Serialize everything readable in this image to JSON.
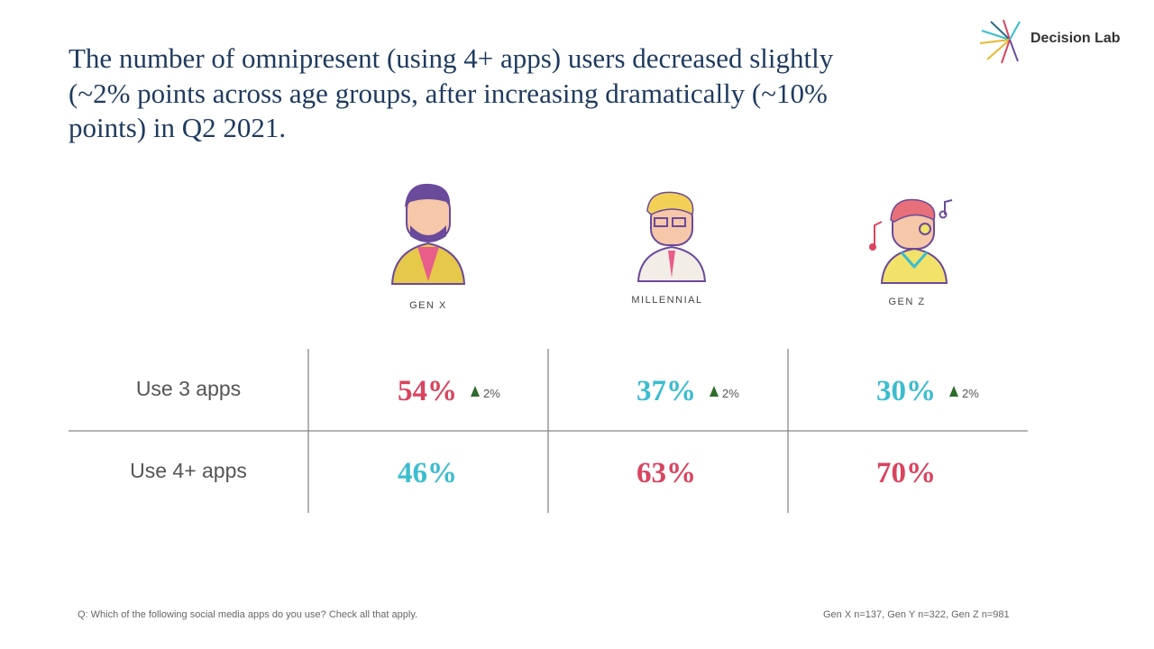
{
  "header": {
    "title_lines": [
      "The number of omnipresent (using 4+ apps) users decreased slightly",
      "(~2% points across age groups, after increasing dramatically (~10%",
      "points) in Q2 2021."
    ],
    "logo": "Decision Lab",
    "title_color": "#1f3a5f"
  },
  "table": {
    "columns": [
      "GEN X",
      "MILLENNIAL",
      "GEN Z"
    ],
    "rows": [
      {
        "label": "Use 3 apps",
        "cells": [
          {
            "value": "54%",
            "color": "#d9445f",
            "change": "2%"
          },
          {
            "value": "37%",
            "color": "#3cbccf",
            "change": "2%"
          },
          {
            "value": "30%",
            "color": "#3cbccf",
            "change": "2%"
          }
        ]
      },
      {
        "label": "Use 4+ apps",
        "cells": [
          {
            "value": "46%",
            "color": "#3cbccf"
          },
          {
            "value": "63%",
            "color": "#d9445f"
          },
          {
            "value": "70%",
            "color": "#d9445f"
          }
        ]
      }
    ],
    "up_color": "#2e6b2e"
  },
  "footer": {
    "question": "Q: Which of the following social media apps do you use? Check all that apply.",
    "sample": "Gen X n=137,  Gen Y n=322,  Gen Z n=981"
  }
}
